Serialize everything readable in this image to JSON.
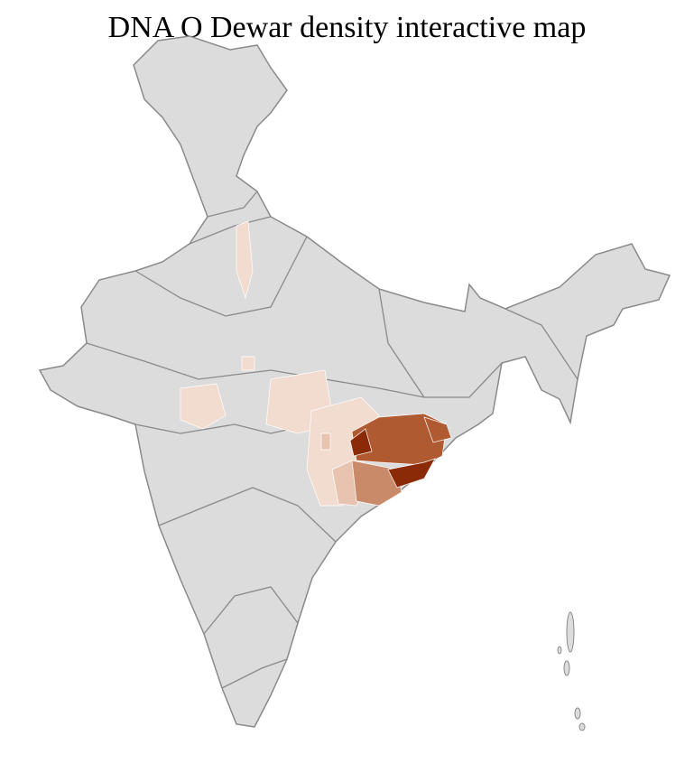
{
  "title": "DNA O Dewar density interactive map",
  "colors": {
    "no_data": "#dcdcdc",
    "state_border": "#8a8a8a",
    "district_border": "#ffffff",
    "level_1": "#f2dcd0",
    "level_2": "#e8c4b0",
    "level_3": "#c98a6a",
    "level_4": "#b05a32",
    "level_5": "#8b2a06"
  }
}
